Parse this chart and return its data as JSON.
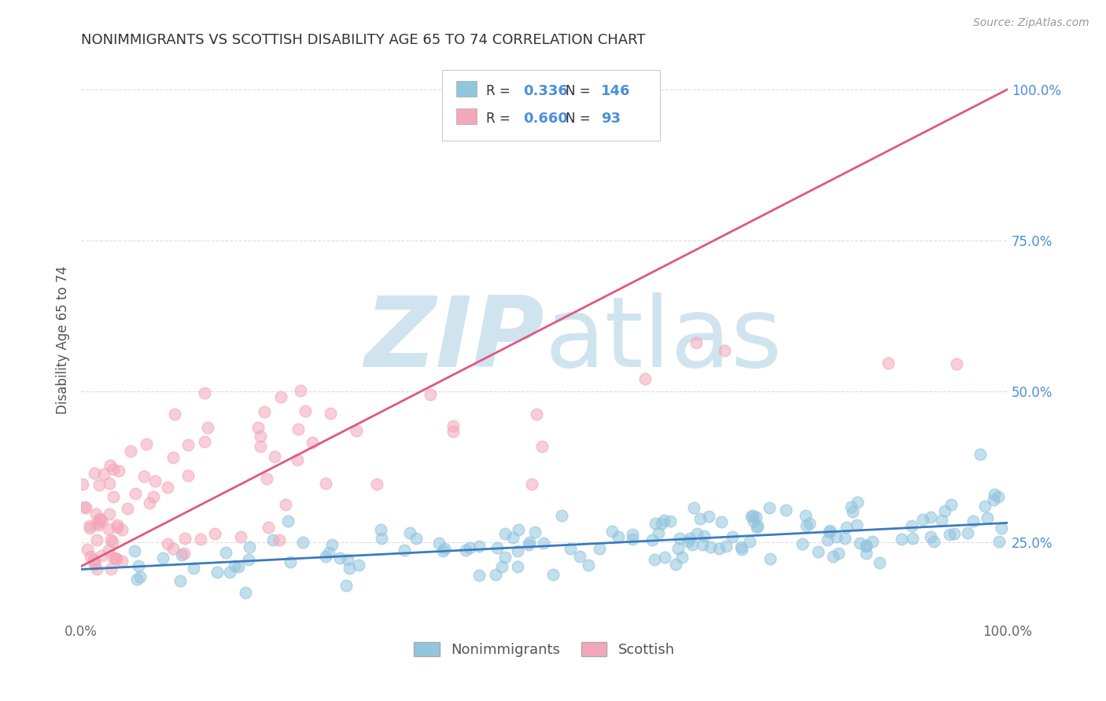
{
  "title": "NONIMMIGRANTS VS SCOTTISH DISABILITY AGE 65 TO 74 CORRELATION CHART",
  "source": "Source: ZipAtlas.com",
  "ylabel": "Disability Age 65 to 74",
  "ytick_vals": [
    0.25,
    0.5,
    0.75,
    1.0
  ],
  "legend_blue_R": "0.336",
  "legend_blue_N": "146",
  "legend_pink_R": "0.660",
  "legend_pink_N": "93",
  "legend_labels": [
    "Nonimmigrants",
    "Scottish"
  ],
  "blue_color": "#92c5de",
  "pink_color": "#f4a7b9",
  "blue_line_color": "#3a7bbf",
  "pink_line_color": "#e05880",
  "label_color": "#4a90d9",
  "watermark_color": "#d0e4f0",
  "background_color": "#ffffff",
  "grid_color": "#dddddd",
  "seed": 17,
  "blue_N": 146,
  "pink_N": 93,
  "xlim": [
    0.0,
    1.0
  ],
  "ylim": [
    0.12,
    1.05
  ],
  "blue_trend_x0": 0.0,
  "blue_trend_y0": 0.205,
  "blue_trend_x1": 1.0,
  "blue_trend_y1": 0.282,
  "pink_trend_x0": 0.0,
  "pink_trend_y0": 0.21,
  "pink_trend_x1": 1.0,
  "pink_trend_y1": 1.0
}
